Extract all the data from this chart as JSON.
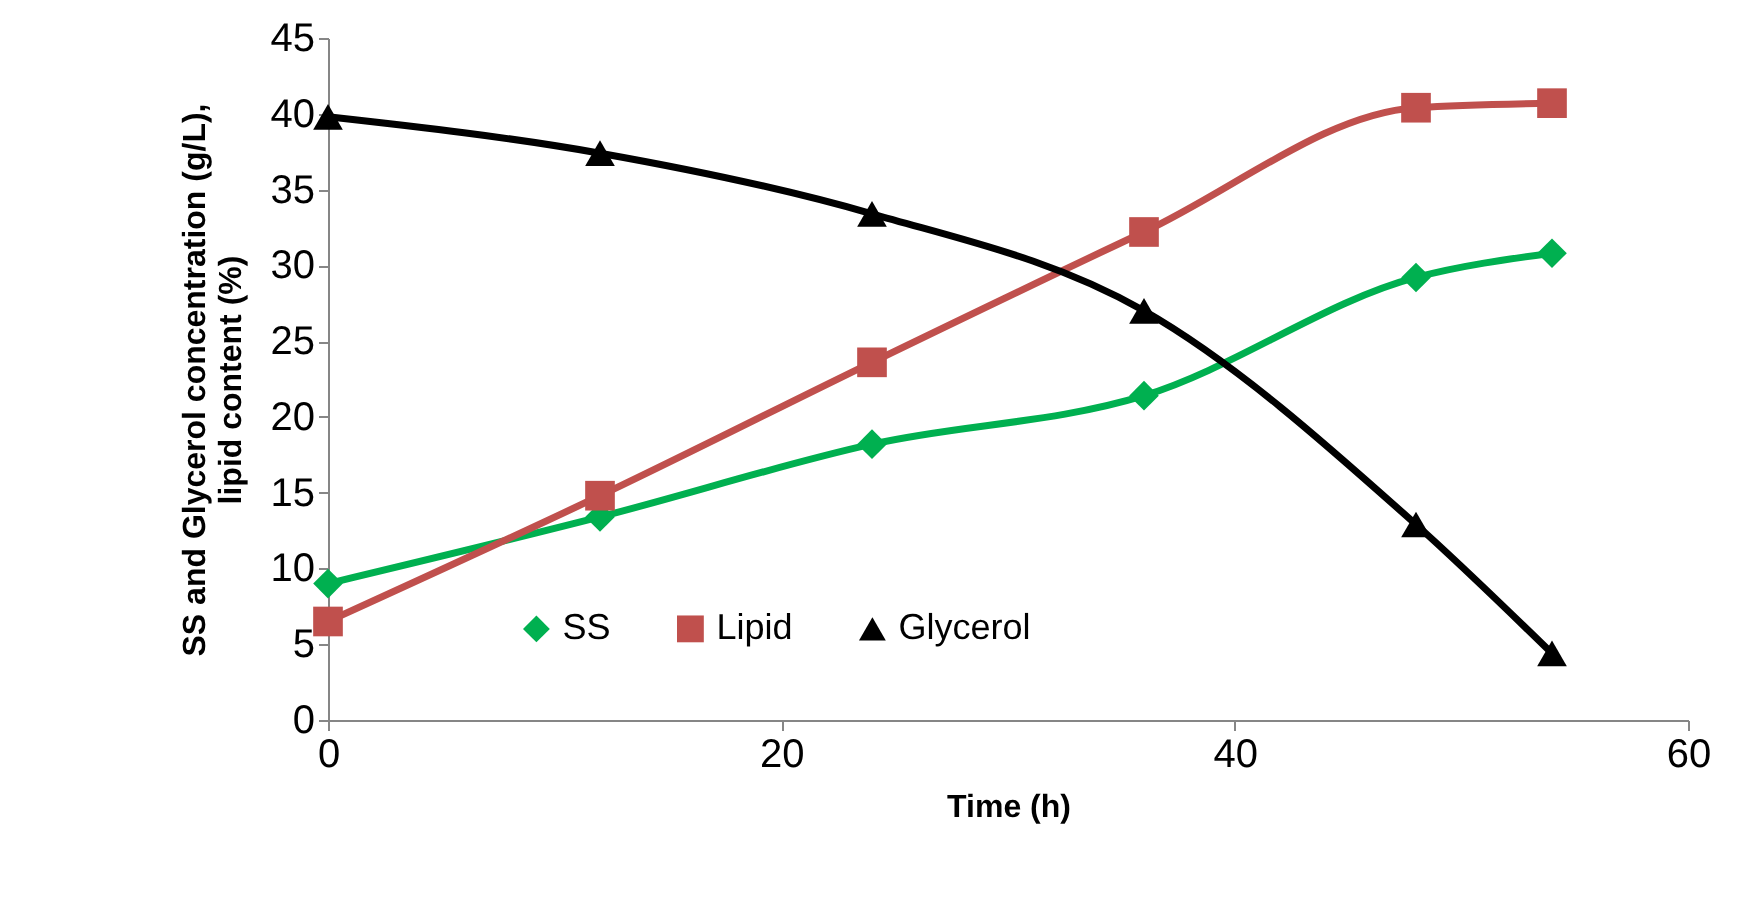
{
  "chart_data": {
    "type": "line",
    "xlabel": "Time (h)",
    "ylabel": "SS and Glycerol concentration (g/L), lipid content (%)",
    "x": [
      0,
      12,
      24,
      36,
      48,
      54
    ],
    "series": [
      {
        "name": "SS",
        "color": "#00b050",
        "marker": "diamond",
        "values": [
          9.0,
          13.4,
          18.2,
          21.4,
          29.2,
          30.8
        ]
      },
      {
        "name": "Lipid",
        "color": "#c0504d",
        "marker": "square",
        "values": [
          6.5,
          14.8,
          23.6,
          32.2,
          40.4,
          40.7
        ]
      },
      {
        "name": "Glycerol",
        "color": "#000000",
        "marker": "triangle",
        "values": [
          39.8,
          37.4,
          33.4,
          27.0,
          12.9,
          4.4
        ]
      }
    ],
    "xlim": [
      0,
      60
    ],
    "xticks": [
      0,
      20,
      40,
      60
    ],
    "ylim": [
      0,
      45
    ],
    "yticks": [
      0,
      5,
      10,
      15,
      20,
      25,
      30,
      35,
      40,
      45
    ],
    "grid": false,
    "legend": "bottom"
  }
}
